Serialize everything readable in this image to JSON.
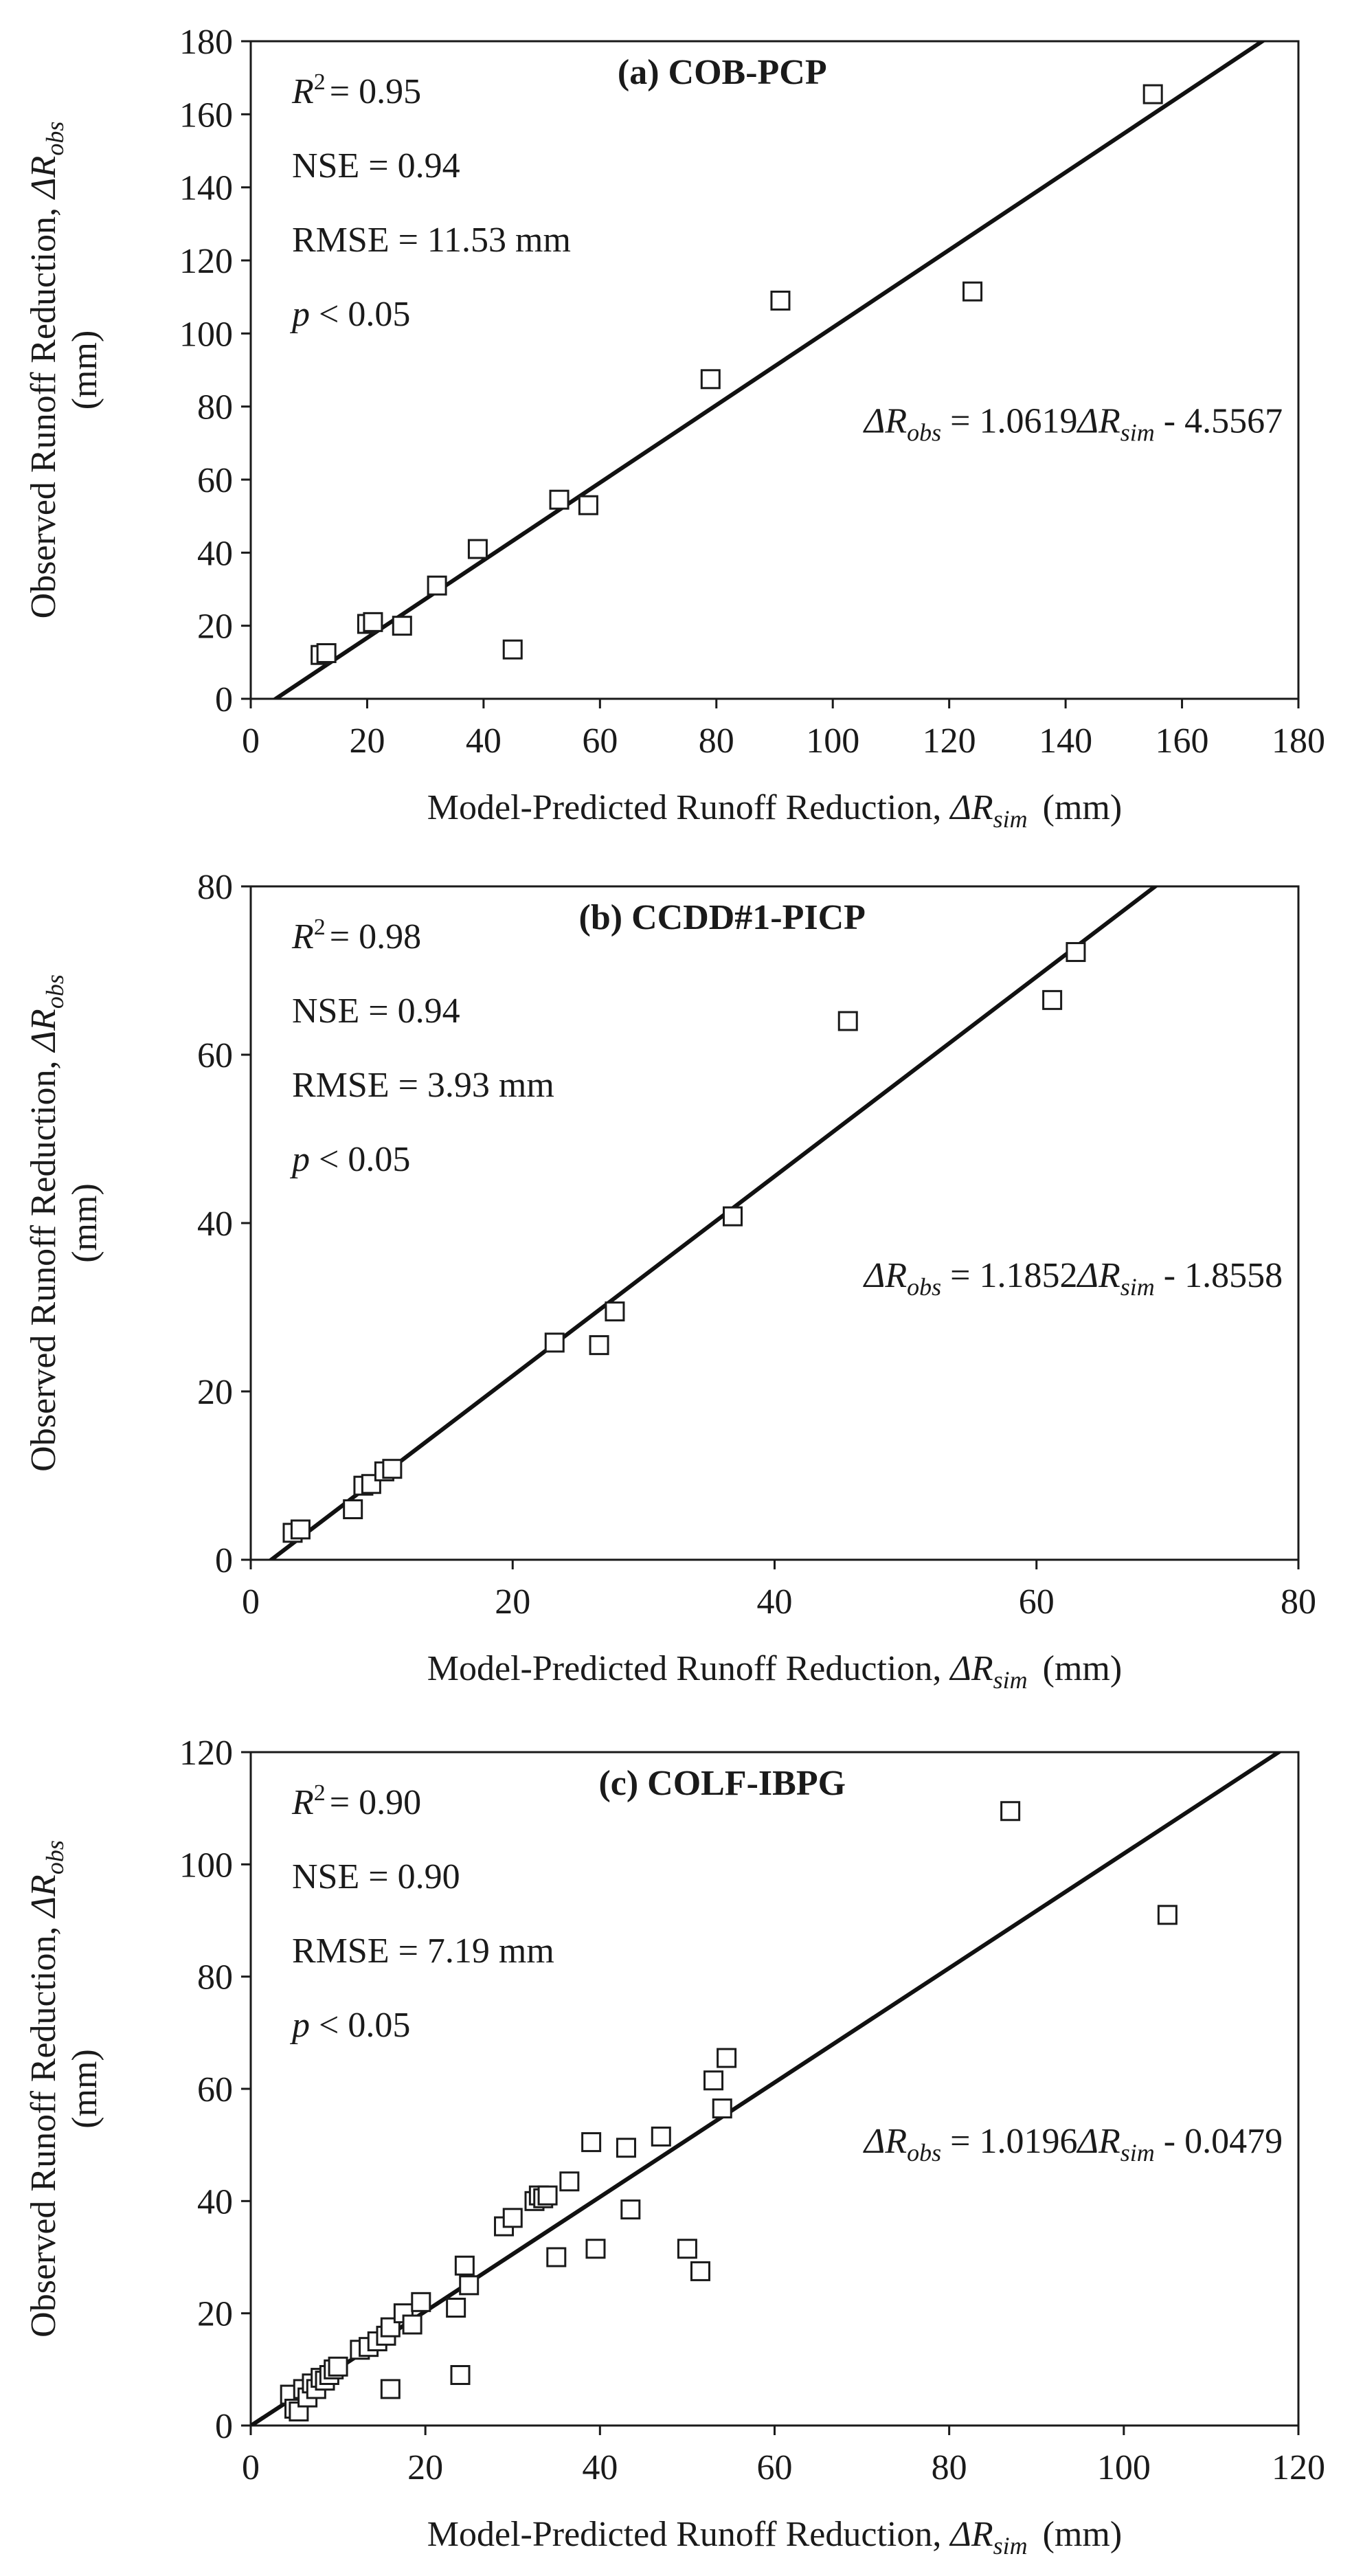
{
  "chart_data": [
    {
      "type": "scatter",
      "panel_title": "(a) COB-PCP",
      "xlabel_main": "Model-Predicted Runoff Reduction, ",
      "xlabel_var": "ΔR",
      "xlabel_sub": "sim",
      "xlabel_unit": "(mm)",
      "ylabel_main": "Observed Runoff Reduction, ",
      "ylabel_var": "ΔR",
      "ylabel_sub": "obs",
      "ylabel_unit": "(mm)",
      "xlim": [
        0,
        180
      ],
      "ylim": [
        0,
        180
      ],
      "xticks": [
        0,
        20,
        40,
        60,
        80,
        100,
        120,
        140,
        160,
        180
      ],
      "yticks": [
        0,
        20,
        40,
        60,
        80,
        100,
        120,
        140,
        160,
        180
      ],
      "stats": {
        "r2_label": "R",
        "r2_sup": "2",
        "r2_value": "= 0.95",
        "nse": "NSE = 0.94",
        "rmse": "RMSE = 11.53 mm",
        "p_label": "p",
        "p_value": " < 0.05"
      },
      "equation": {
        "lhs_var": "ΔR",
        "lhs_sub": "obs",
        "mid": " = 1.0619",
        "rhs_var": "ΔR",
        "rhs_sub": "sim",
        "tail": " - 4.5567"
      },
      "fit": {
        "slope": 1.0619,
        "intercept": -4.5567
      },
      "points": [
        [
          12,
          12
        ],
        [
          13,
          12.5
        ],
        [
          20,
          20.5
        ],
        [
          21,
          21
        ],
        [
          26,
          20
        ],
        [
          32,
          31
        ],
        [
          39,
          41
        ],
        [
          45,
          13.5
        ],
        [
          53,
          54.5
        ],
        [
          58,
          53
        ],
        [
          79,
          87.5
        ],
        [
          91,
          109
        ],
        [
          124,
          111.5
        ],
        [
          155,
          165.5
        ]
      ]
    },
    {
      "type": "scatter",
      "panel_title": "(b) CCDD#1-PICP",
      "xlabel_main": "Model-Predicted Runoff Reduction, ",
      "xlabel_var": "ΔR",
      "xlabel_sub": "sim",
      "xlabel_unit": "(mm)",
      "ylabel_main": "Observed Runoff Reduction, ",
      "ylabel_var": "ΔR",
      "ylabel_sub": "obs",
      "ylabel_unit": "(mm)",
      "xlim": [
        0,
        80
      ],
      "ylim": [
        0,
        80
      ],
      "xticks": [
        0,
        20,
        40,
        60,
        80
      ],
      "yticks": [
        0,
        20,
        40,
        60,
        80
      ],
      "stats": {
        "r2_label": "R",
        "r2_sup": "2",
        "r2_value": "= 0.98",
        "nse": "NSE = 0.94",
        "rmse": "RMSE = 3.93 mm",
        "p_label": "p",
        "p_value": " < 0.05"
      },
      "equation": {
        "lhs_var": "ΔR",
        "lhs_sub": "obs",
        "mid": " = 1.1852",
        "rhs_var": "ΔR",
        "rhs_sub": "sim",
        "tail": " - 1.8558"
      },
      "fit": {
        "slope": 1.1852,
        "intercept": -1.8558
      },
      "points": [
        [
          3.2,
          3.2
        ],
        [
          3.8,
          3.6
        ],
        [
          7.8,
          6
        ],
        [
          8.6,
          8.8
        ],
        [
          9.2,
          9
        ],
        [
          10.2,
          10.5
        ],
        [
          10.8,
          10.8
        ],
        [
          23.2,
          25.8
        ],
        [
          26.6,
          25.5
        ],
        [
          27.8,
          29.5
        ],
        [
          36.8,
          40.8
        ],
        [
          45.6,
          64
        ],
        [
          61.2,
          66.5
        ],
        [
          63,
          72.2
        ]
      ]
    },
    {
      "type": "scatter",
      "panel_title": "(c) COLF-IBPG",
      "xlabel_main": "Model-Predicted Runoff Reduction, ",
      "xlabel_var": "ΔR",
      "xlabel_sub": "sim",
      "xlabel_unit": "(mm)",
      "ylabel_main": "Observed Runoff Reduction, ",
      "ylabel_var": "ΔR",
      "ylabel_sub": "obs",
      "ylabel_unit": "(mm)",
      "xlim": [
        0,
        120
      ],
      "ylim": [
        0,
        120
      ],
      "xticks": [
        0,
        20,
        40,
        60,
        80,
        100,
        120
      ],
      "yticks": [
        0,
        20,
        40,
        60,
        80,
        100,
        120
      ],
      "stats": {
        "r2_label": "R",
        "r2_sup": "2",
        "r2_value": "= 0.90",
        "nse": "NSE = 0.90",
        "rmse": "RMSE = 7.19 mm",
        "p_label": "p",
        "p_value": " < 0.05"
      },
      "equation": {
        "lhs_var": "ΔR",
        "lhs_sub": "obs",
        "mid": " = 1.0196",
        "rhs_var": "ΔR",
        "rhs_sub": "sim",
        "tail": " - 0.0479"
      },
      "fit": {
        "slope": 1.0196,
        "intercept": -0.0479
      },
      "points": [
        [
          4.5,
          5.5
        ],
        [
          5,
          3
        ],
        [
          5.5,
          2.5
        ],
        [
          6,
          6.5
        ],
        [
          6.5,
          5
        ],
        [
          7,
          7.5
        ],
        [
          7.5,
          6.5
        ],
        [
          8,
          8.5
        ],
        [
          8.5,
          8
        ],
        [
          9,
          9
        ],
        [
          9.5,
          10
        ],
        [
          10,
          10.5
        ],
        [
          12.5,
          13.5
        ],
        [
          13.5,
          14
        ],
        [
          14.5,
          15
        ],
        [
          15.5,
          16
        ],
        [
          16,
          6.5
        ],
        [
          16,
          17.5
        ],
        [
          17.5,
          20
        ],
        [
          18.5,
          18
        ],
        [
          19.5,
          22
        ],
        [
          23.5,
          21
        ],
        [
          24,
          9
        ],
        [
          24.5,
          28.5
        ],
        [
          25,
          25
        ],
        [
          29,
          35.5
        ],
        [
          30,
          37
        ],
        [
          32.5,
          40
        ],
        [
          33,
          41
        ],
        [
          33.5,
          40.5
        ],
        [
          34,
          41
        ],
        [
          35,
          30
        ],
        [
          36.5,
          43.5
        ],
        [
          39,
          50.5
        ],
        [
          39.5,
          31.5
        ],
        [
          43,
          49.5
        ],
        [
          43.5,
          38.5
        ],
        [
          47,
          51.5
        ],
        [
          50,
          31.5
        ],
        [
          51.5,
          27.5
        ],
        [
          53,
          61.5
        ],
        [
          54,
          56.5
        ],
        [
          54.5,
          65.5
        ],
        [
          87,
          109.5
        ],
        [
          105,
          91
        ]
      ]
    }
  ]
}
